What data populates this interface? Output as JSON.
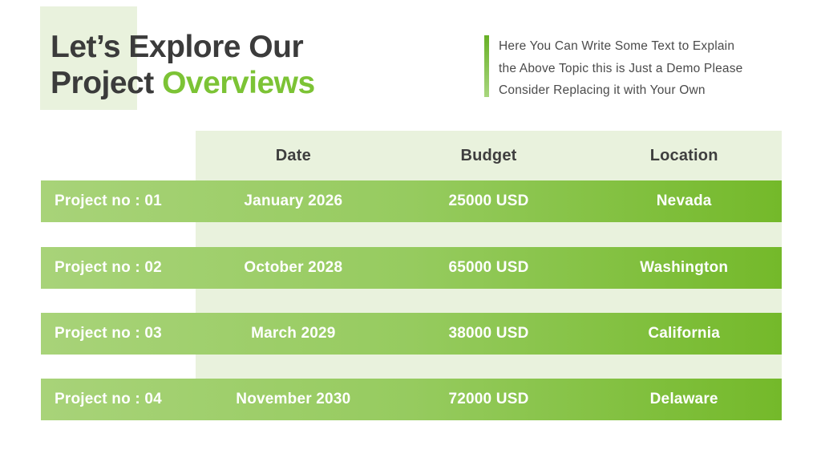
{
  "title": {
    "line1": "Let’s Explore Our",
    "line2_dark": "Project",
    "line2_accent": "Overviews"
  },
  "description": {
    "lines": [
      "Here You Can Write Some Text to Explain",
      "the Above Topic this is Just a Demo Please",
      "Consider Replacing it with Your Own"
    ]
  },
  "table": {
    "headers": [
      "Date",
      "Budget",
      "Location"
    ],
    "rows": [
      {
        "label": "Project no : 01",
        "date": "January 2026",
        "budget": "25000 USD",
        "location": "Nevada"
      },
      {
        "label": "Project no : 02",
        "date": "October 2028",
        "budget": "65000 USD",
        "location": "Washington"
      },
      {
        "label": "Project no : 03",
        "date": "March 2029",
        "budget": "38000 USD",
        "location": "California"
      },
      {
        "label": "Project no : 04",
        "date": "November 2030",
        "budget": "72000 USD",
        "location": "Delaware"
      }
    ]
  },
  "colors": {
    "accent_green": "#7cc335",
    "light_green": "#e9f2dd",
    "row_grad_start": "#a8d379",
    "row_grad_mid": "#96cb5f",
    "row_grad_end": "#74b92a",
    "bar_grad_start": "#68b026",
    "bar_grad_end": "#a8d67e",
    "title_dark": "#3b3b3b",
    "body_text": "#4b4b4b",
    "header_text": "#3e3e3e",
    "row_text": "#ffffff"
  }
}
